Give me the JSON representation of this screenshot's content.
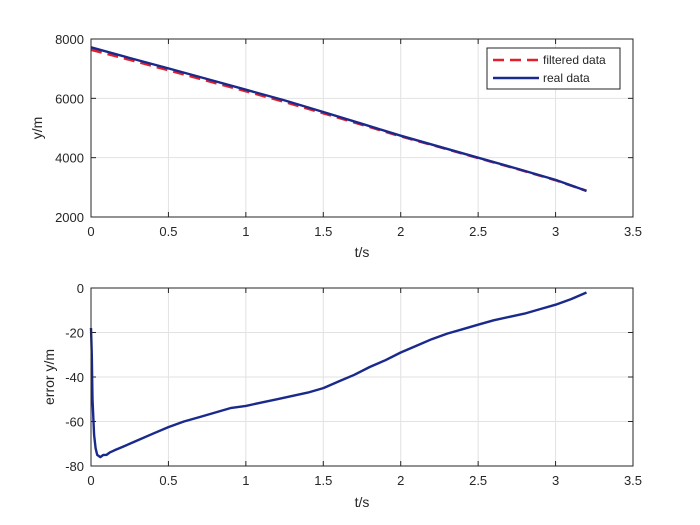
{
  "chart_data": [
    {
      "type": "line",
      "xlabel": "t/s",
      "ylabel": "y/m",
      "xlim": [
        0,
        3.5
      ],
      "ylim": [
        2000,
        8000
      ],
      "xticks": [
        "0",
        "0.5",
        "1",
        "1.5",
        "2",
        "2.5",
        "3",
        "3.5"
      ],
      "yticks": [
        "2000",
        "4000",
        "6000",
        "8000"
      ],
      "grid": true,
      "legend_position": "top-right",
      "series": [
        {
          "name": "filtered data",
          "color": "#e3202a",
          "style": "dashed",
          "x": [
            0,
            0.25,
            0.5,
            0.75,
            1.0,
            1.25,
            1.5,
            1.75,
            2.0,
            2.25,
            2.5,
            2.75,
            3.0,
            3.2
          ],
          "y": [
            7640,
            7300,
            6950,
            6590,
            6240,
            5880,
            5500,
            5110,
            4720,
            4360,
            3990,
            3620,
            3240,
            2880
          ]
        },
        {
          "name": "real data",
          "color": "#1a2a8c",
          "style": "solid",
          "x": [
            0,
            0.25,
            0.5,
            0.75,
            1.0,
            1.25,
            1.5,
            1.75,
            2.0,
            2.25,
            2.5,
            2.75,
            3.0,
            3.2
          ],
          "y": [
            7720,
            7360,
            7010,
            6650,
            6290,
            5930,
            5540,
            5140,
            4740,
            4370,
            4000,
            3630,
            3250,
            2880
          ]
        }
      ]
    },
    {
      "type": "line",
      "xlabel": "t/s",
      "ylabel": "error y/m",
      "xlim": [
        0,
        3.5
      ],
      "ylim": [
        -80,
        0
      ],
      "xticks": [
        "0",
        "0.5",
        "1",
        "1.5",
        "2",
        "2.5",
        "3",
        "3.5"
      ],
      "yticks": [
        "-80",
        "-60",
        "-40",
        "-20",
        "0"
      ],
      "grid": true,
      "series": [
        {
          "color": "#1a2a8c",
          "style": "solid",
          "x": [
            0,
            0.005,
            0.01,
            0.02,
            0.03,
            0.04,
            0.06,
            0.08,
            0.1,
            0.12,
            0.15,
            0.2,
            0.3,
            0.4,
            0.5,
            0.6,
            0.7,
            0.8,
            0.9,
            1.0,
            1.1,
            1.2,
            1.3,
            1.4,
            1.5,
            1.6,
            1.7,
            1.8,
            1.9,
            2.0,
            2.1,
            2.2,
            2.3,
            2.4,
            2.5,
            2.6,
            2.7,
            2.8,
            2.9,
            3.0,
            3.1,
            3.2
          ],
          "y": [
            -18,
            -30,
            -50,
            -66,
            -72,
            -75,
            -76,
            -75,
            -75,
            -74,
            -73,
            -71.5,
            -68.5,
            -65.5,
            -62.5,
            -60,
            -58,
            -56,
            -54,
            -53,
            -51.5,
            -50,
            -48.5,
            -47,
            -45,
            -42,
            -39,
            -35.5,
            -32.5,
            -29,
            -26,
            -23,
            -20.5,
            -18.5,
            -16.5,
            -14.5,
            -13,
            -11.5,
            -9.5,
            -7.5,
            -5,
            -2
          ]
        }
      ]
    }
  ]
}
